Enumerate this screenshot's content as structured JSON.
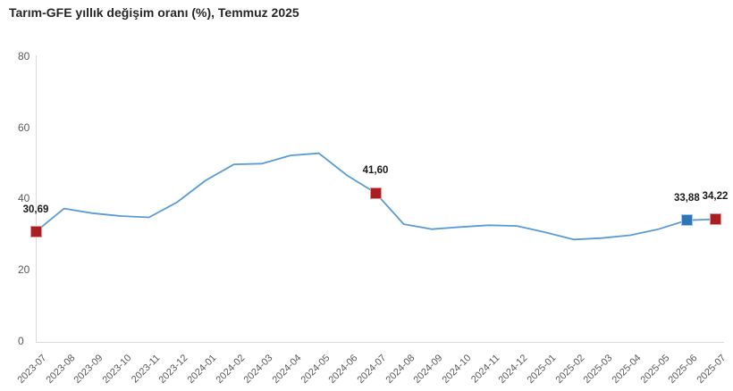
{
  "title": "Tarım-GFE yıllık değişim oranı (%), Temmuz 2025",
  "colors": {
    "line": "#5B9BD5",
    "marker_red": "#A91E22",
    "marker_red_border": "#E59493",
    "marker_blue": "#2E75B6",
    "marker_blue_border": "#9DC3E6",
    "axis": "#D9D9D9",
    "tick_text": "#595959",
    "title_text": "#262626"
  },
  "chart_data": {
    "type": "line",
    "title": "Tarım-GFE yıllık değişim oranı (%), Temmuz 2025",
    "xlabel": "",
    "ylabel": "",
    "ylim": [
      0,
      80
    ],
    "yticks": [
      0,
      20,
      40,
      60,
      80
    ],
    "grid": false,
    "legend": "none",
    "categories": [
      "2023-07",
      "2023-08",
      "2023-09",
      "2023-10",
      "2023-11",
      "2023-12",
      "2024-01",
      "2024-02",
      "2024-03",
      "2024-04",
      "2024-05",
      "2024-06",
      "2024-07",
      "2024-08",
      "2024-09",
      "2024-10",
      "2024-11",
      "2024-12",
      "2025-01",
      "2025-02",
      "2025-03",
      "2025-04",
      "2025-05",
      "2025-06",
      "2025-07"
    ],
    "values": [
      30.69,
      37.2,
      35.9,
      35.1,
      34.7,
      39.0,
      45.1,
      49.6,
      49.8,
      52.1,
      52.7,
      46.5,
      41.6,
      32.8,
      31.4,
      32.0,
      32.5,
      32.3,
      30.5,
      28.5,
      28.9,
      29.7,
      31.4,
      33.88,
      34.22
    ],
    "annotations": [
      {
        "category": "2023-07",
        "index": 0,
        "label": "30,69",
        "marker": "red"
      },
      {
        "category": "2024-07",
        "index": 12,
        "label": "41,60",
        "marker": "red"
      },
      {
        "category": "2025-06",
        "index": 23,
        "label": "33,88",
        "marker": "blue"
      },
      {
        "category": "2025-07",
        "index": 24,
        "label": "34,22",
        "marker": "red"
      }
    ]
  }
}
